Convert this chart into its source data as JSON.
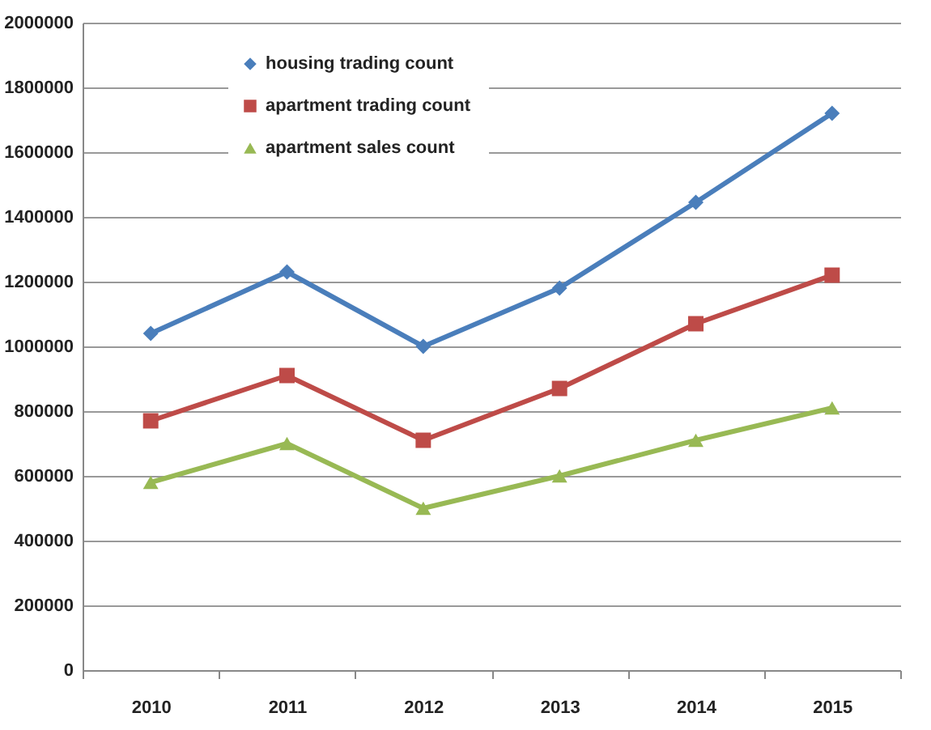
{
  "chart_data": {
    "type": "line",
    "categories": [
      "2010",
      "2011",
      "2012",
      "2013",
      "2014",
      "2015"
    ],
    "series": [
      {
        "name": "housing trading count",
        "color": "#4a7ebb",
        "marker": "diamond",
        "values": [
          1040000,
          1230000,
          1000000,
          1180000,
          1445000,
          1720000
        ]
      },
      {
        "name": "apartment  trading count",
        "color": "#be4b48",
        "marker": "square",
        "values": [
          770000,
          910000,
          710000,
          870000,
          1070000,
          1220000
        ]
      },
      {
        "name": "apartment sales count",
        "color": "#98b954",
        "marker": "triangle",
        "values": [
          580000,
          700000,
          500000,
          600000,
          710000,
          810000
        ]
      }
    ],
    "ylim": [
      0,
      2000000
    ],
    "yticks": [
      0,
      200000,
      400000,
      600000,
      800000,
      1000000,
      1200000,
      1400000,
      1600000,
      1800000,
      2000000
    ],
    "grid": "y",
    "legend": "top left",
    "line_style": "solid"
  }
}
